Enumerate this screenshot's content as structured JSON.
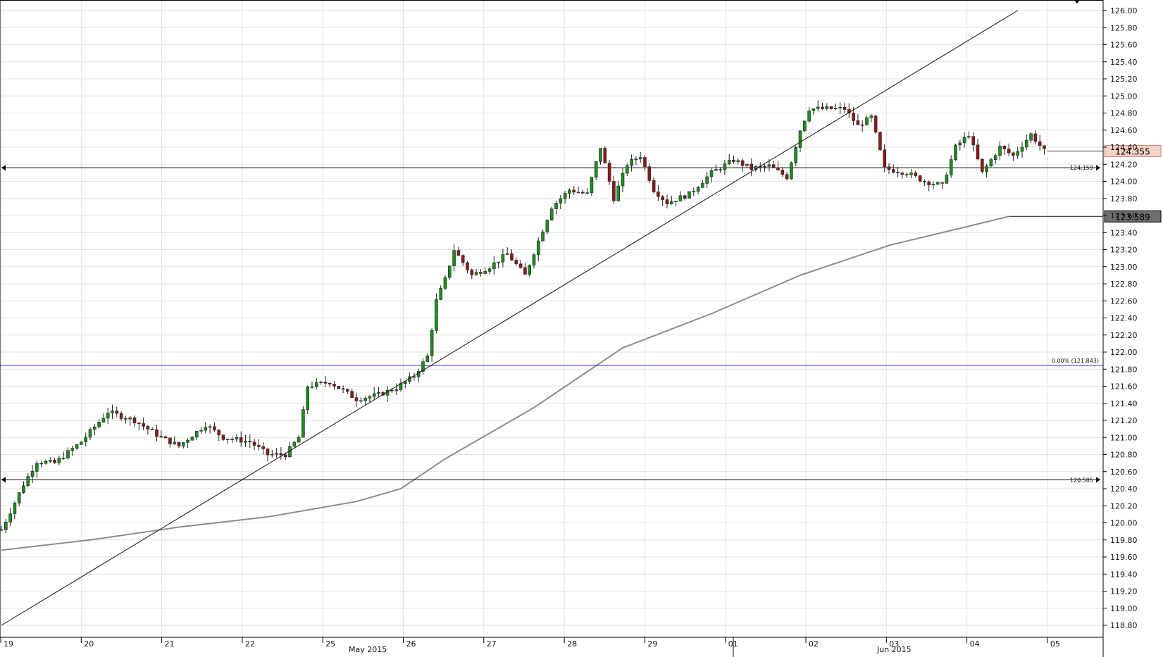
{
  "chart_data": {
    "type": "candlestick",
    "instrument_title": "",
    "x_day_labels": [
      "19",
      "20",
      "21",
      "22",
      "25",
      "26",
      "27",
      "28",
      "29",
      "01",
      "02",
      "03",
      "04",
      "05"
    ],
    "x_month_labels": [
      "May 2015",
      "Jun 2015"
    ],
    "ylim": [
      118.8,
      126.0
    ],
    "y_ticks": [
      "126.00",
      "125.80",
      "125.60",
      "125.40",
      "125.20",
      "125.00",
      "124.80",
      "124.60",
      "124.40",
      "124.20",
      "124.00",
      "123.80",
      "123.60",
      "123.40",
      "123.20",
      "123.00",
      "122.80",
      "122.60",
      "122.40",
      "122.20",
      "122.00",
      "121.80",
      "121.60",
      "121.40",
      "121.20",
      "121.00",
      "120.80",
      "120.60",
      "120.40",
      "120.20",
      "120.00",
      "119.80",
      "119.60",
      "119.40",
      "119.20",
      "119.00",
      "118.80"
    ],
    "grid": true,
    "bars_per_day": 10,
    "close_path": [
      [
        0,
        119.92
      ],
      [
        5,
        120.45
      ],
      [
        8,
        120.72
      ],
      [
        12,
        120.7
      ],
      [
        18,
        120.95
      ],
      [
        24,
        121.3
      ],
      [
        30,
        121.2
      ],
      [
        36,
        121.0
      ],
      [
        40,
        120.9
      ],
      [
        46,
        121.15
      ],
      [
        50,
        121.0
      ],
      [
        56,
        120.95
      ],
      [
        60,
        120.8
      ],
      [
        64,
        120.8
      ],
      [
        67,
        121.0
      ],
      [
        69,
        121.6
      ],
      [
        74,
        121.65
      ],
      [
        80,
        121.45
      ],
      [
        85,
        121.5
      ],
      [
        89,
        121.58
      ],
      [
        93,
        121.72
      ],
      [
        96,
        121.95
      ],
      [
        98,
        122.6
      ],
      [
        100,
        122.85
      ],
      [
        102,
        123.2
      ],
      [
        106,
        122.9
      ],
      [
        110,
        123.0
      ],
      [
        114,
        123.15
      ],
      [
        118,
        122.9
      ],
      [
        121,
        123.3
      ],
      [
        124,
        123.7
      ],
      [
        128,
        123.9
      ],
      [
        132,
        123.85
      ],
      [
        135,
        124.4
      ],
      [
        138,
        123.8
      ],
      [
        141,
        124.2
      ],
      [
        144,
        124.3
      ],
      [
        147,
        123.9
      ],
      [
        150,
        123.75
      ],
      [
        155,
        123.85
      ],
      [
        160,
        124.1
      ],
      [
        165,
        124.25
      ],
      [
        169,
        124.15
      ],
      [
        173,
        124.18
      ],
      [
        177,
        124.05
      ],
      [
        180,
        124.6
      ],
      [
        182,
        124.85
      ],
      [
        186,
        124.85
      ],
      [
        190,
        124.85
      ],
      [
        193,
        124.65
      ],
      [
        196,
        124.75
      ],
      [
        199,
        124.15
      ],
      [
        204,
        124.1
      ],
      [
        208,
        124.0
      ],
      [
        212,
        123.95
      ],
      [
        215,
        124.4
      ],
      [
        218,
        124.55
      ],
      [
        221,
        124.1
      ],
      [
        225,
        124.4
      ],
      [
        228,
        124.3
      ],
      [
        232,
        124.55
      ],
      [
        235,
        124.355
      ]
    ],
    "current_price": "124.355",
    "sma_value": "123.589",
    "sma_path": [
      [
        0,
        119.68
      ],
      [
        20,
        119.8
      ],
      [
        40,
        119.95
      ],
      [
        60,
        120.07
      ],
      [
        80,
        120.25
      ],
      [
        90,
        120.4
      ],
      [
        100,
        120.75
      ],
      [
        120,
        121.35
      ],
      [
        140,
        122.05
      ],
      [
        160,
        122.45
      ],
      [
        180,
        122.9
      ],
      [
        200,
        123.25
      ],
      [
        220,
        123.5
      ],
      [
        227,
        123.589
      ]
    ],
    "trendline": {
      "from": [
        0,
        118.8
      ],
      "to": [
        229,
        126.0
      ]
    },
    "hlines": [
      {
        "label": "124.159",
        "value": 124.159,
        "color": "#000000"
      },
      {
        "label": "120.505",
        "value": 120.505,
        "color": "#000000"
      }
    ],
    "fib_line": {
      "label": "0.00% (121.843)",
      "value": 121.843,
      "color": "#2b2bd6"
    },
    "colors": {
      "up": "#1e8c1e",
      "down": "#8b1a1a",
      "sma": "#8c8c8c",
      "price_box": "#f6d2c6",
      "sma_box": "#6e6e6e",
      "grid": "#e2e2e2"
    }
  }
}
